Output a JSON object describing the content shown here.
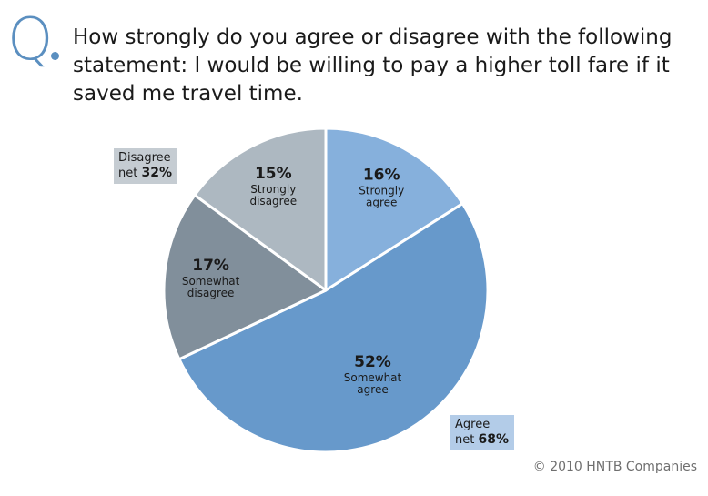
{
  "header": {
    "q_letter": "Q",
    "question": "How strongly do you agree or disagree with the following statement: I would be willing to pay a higher toll fare if it saved me travel time."
  },
  "colors": {
    "accent": "#5b8fc0",
    "strongly_agree": "#86b0dc",
    "somewhat_agree": "#6799cb",
    "somewhat_disagree": "#818f9b",
    "strongly_disagree": "#adb8c1",
    "agree_box": "#b3cce8",
    "disagree_box": "#c5ccd2",
    "text": "#1a1a1a"
  },
  "net_boxes": {
    "disagree": {
      "label": "Disagree",
      "net_prefix": "net",
      "value": "32%"
    },
    "agree": {
      "label": "Agree",
      "net_prefix": "net",
      "value": "68%"
    }
  },
  "chart_data": {
    "type": "pie",
    "start_angle_deg": 0,
    "direction": "clockwise",
    "slices": [
      {
        "label_lines": [
          "Strongly",
          "agree"
        ],
        "value": 16,
        "value_label": "16%",
        "color": "#86b0dc"
      },
      {
        "label_lines": [
          "Somewhat",
          "agree"
        ],
        "value": 52,
        "value_label": "52%",
        "color": "#6799cb"
      },
      {
        "label_lines": [
          "Somewhat",
          "disagree"
        ],
        "value": 17,
        "value_label": "17%",
        "color": "#818f9b"
      },
      {
        "label_lines": [
          "Strongly",
          "disagree"
        ],
        "value": 15,
        "value_label": "15%",
        "color": "#adb8c1"
      }
    ],
    "net": {
      "agree": 68,
      "disagree": 32
    }
  },
  "footer": {
    "copyright": "© 2010 HNTB Companies"
  }
}
